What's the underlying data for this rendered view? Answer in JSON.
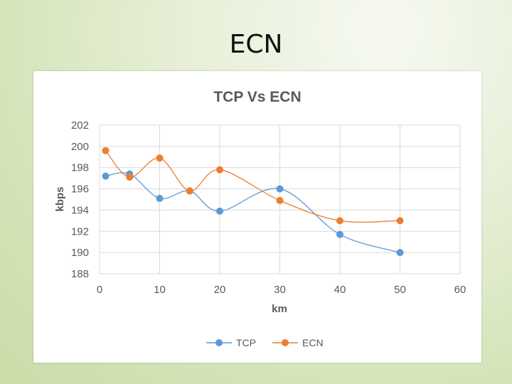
{
  "slide": {
    "title": "ECN"
  },
  "chart_data": {
    "type": "line",
    "title": "TCP Vs ECN",
    "xlabel": "km",
    "ylabel": "kbps",
    "xlim": [
      0,
      60
    ],
    "ylim": [
      188,
      202
    ],
    "xticks": [
      0,
      10,
      20,
      30,
      40,
      50,
      60
    ],
    "yticks": [
      188,
      190,
      192,
      194,
      196,
      198,
      200,
      202
    ],
    "grid": true,
    "smooth": true,
    "legend_position": "bottom",
    "series": [
      {
        "name": "TCP",
        "color": "#5b9bd5",
        "points": [
          [
            1,
            197.2
          ],
          [
            5,
            197.4
          ],
          [
            10,
            195.1
          ],
          [
            15,
            195.8
          ],
          [
            20,
            193.9
          ],
          [
            30,
            196.0
          ],
          [
            40,
            191.7
          ],
          [
            50,
            190.0
          ]
        ]
      },
      {
        "name": "ECN",
        "color": "#ed7d31",
        "points": [
          [
            1,
            199.6
          ],
          [
            5,
            197.1
          ],
          [
            10,
            198.9
          ],
          [
            15,
            195.8
          ],
          [
            20,
            197.8
          ],
          [
            30,
            194.9
          ],
          [
            40,
            193.0
          ],
          [
            50,
            193.0
          ]
        ]
      }
    ]
  }
}
